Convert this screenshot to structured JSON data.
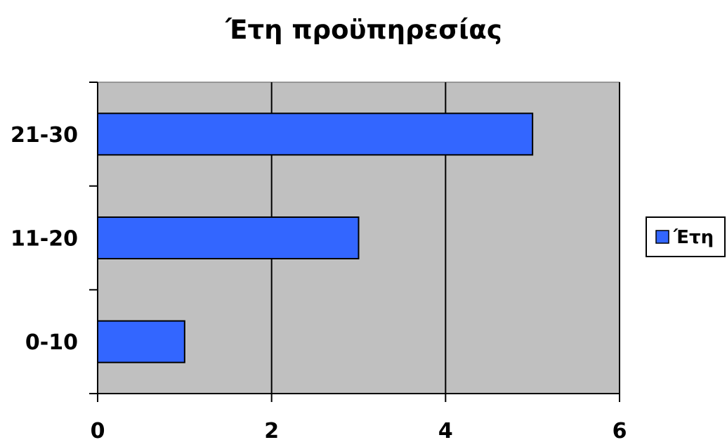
{
  "chart_data": {
    "type": "bar",
    "orientation": "horizontal",
    "title": "Έτη προϋπηρεσίας",
    "categories": [
      "0-10",
      "11-20",
      "21-30"
    ],
    "series": [
      {
        "name": "Έτη",
        "values": [
          1,
          3,
          5
        ],
        "color": "#3366FF"
      }
    ],
    "xlim": [
      0,
      6
    ],
    "x_ticks": [
      0,
      2,
      4,
      6
    ],
    "x_tick_labels": [
      "0",
      "2",
      "4",
      "6"
    ],
    "grid": "vertical",
    "plot_background": "#C0C0C0",
    "legend": {
      "position": "right",
      "entries": [
        "Έτη"
      ]
    }
  }
}
